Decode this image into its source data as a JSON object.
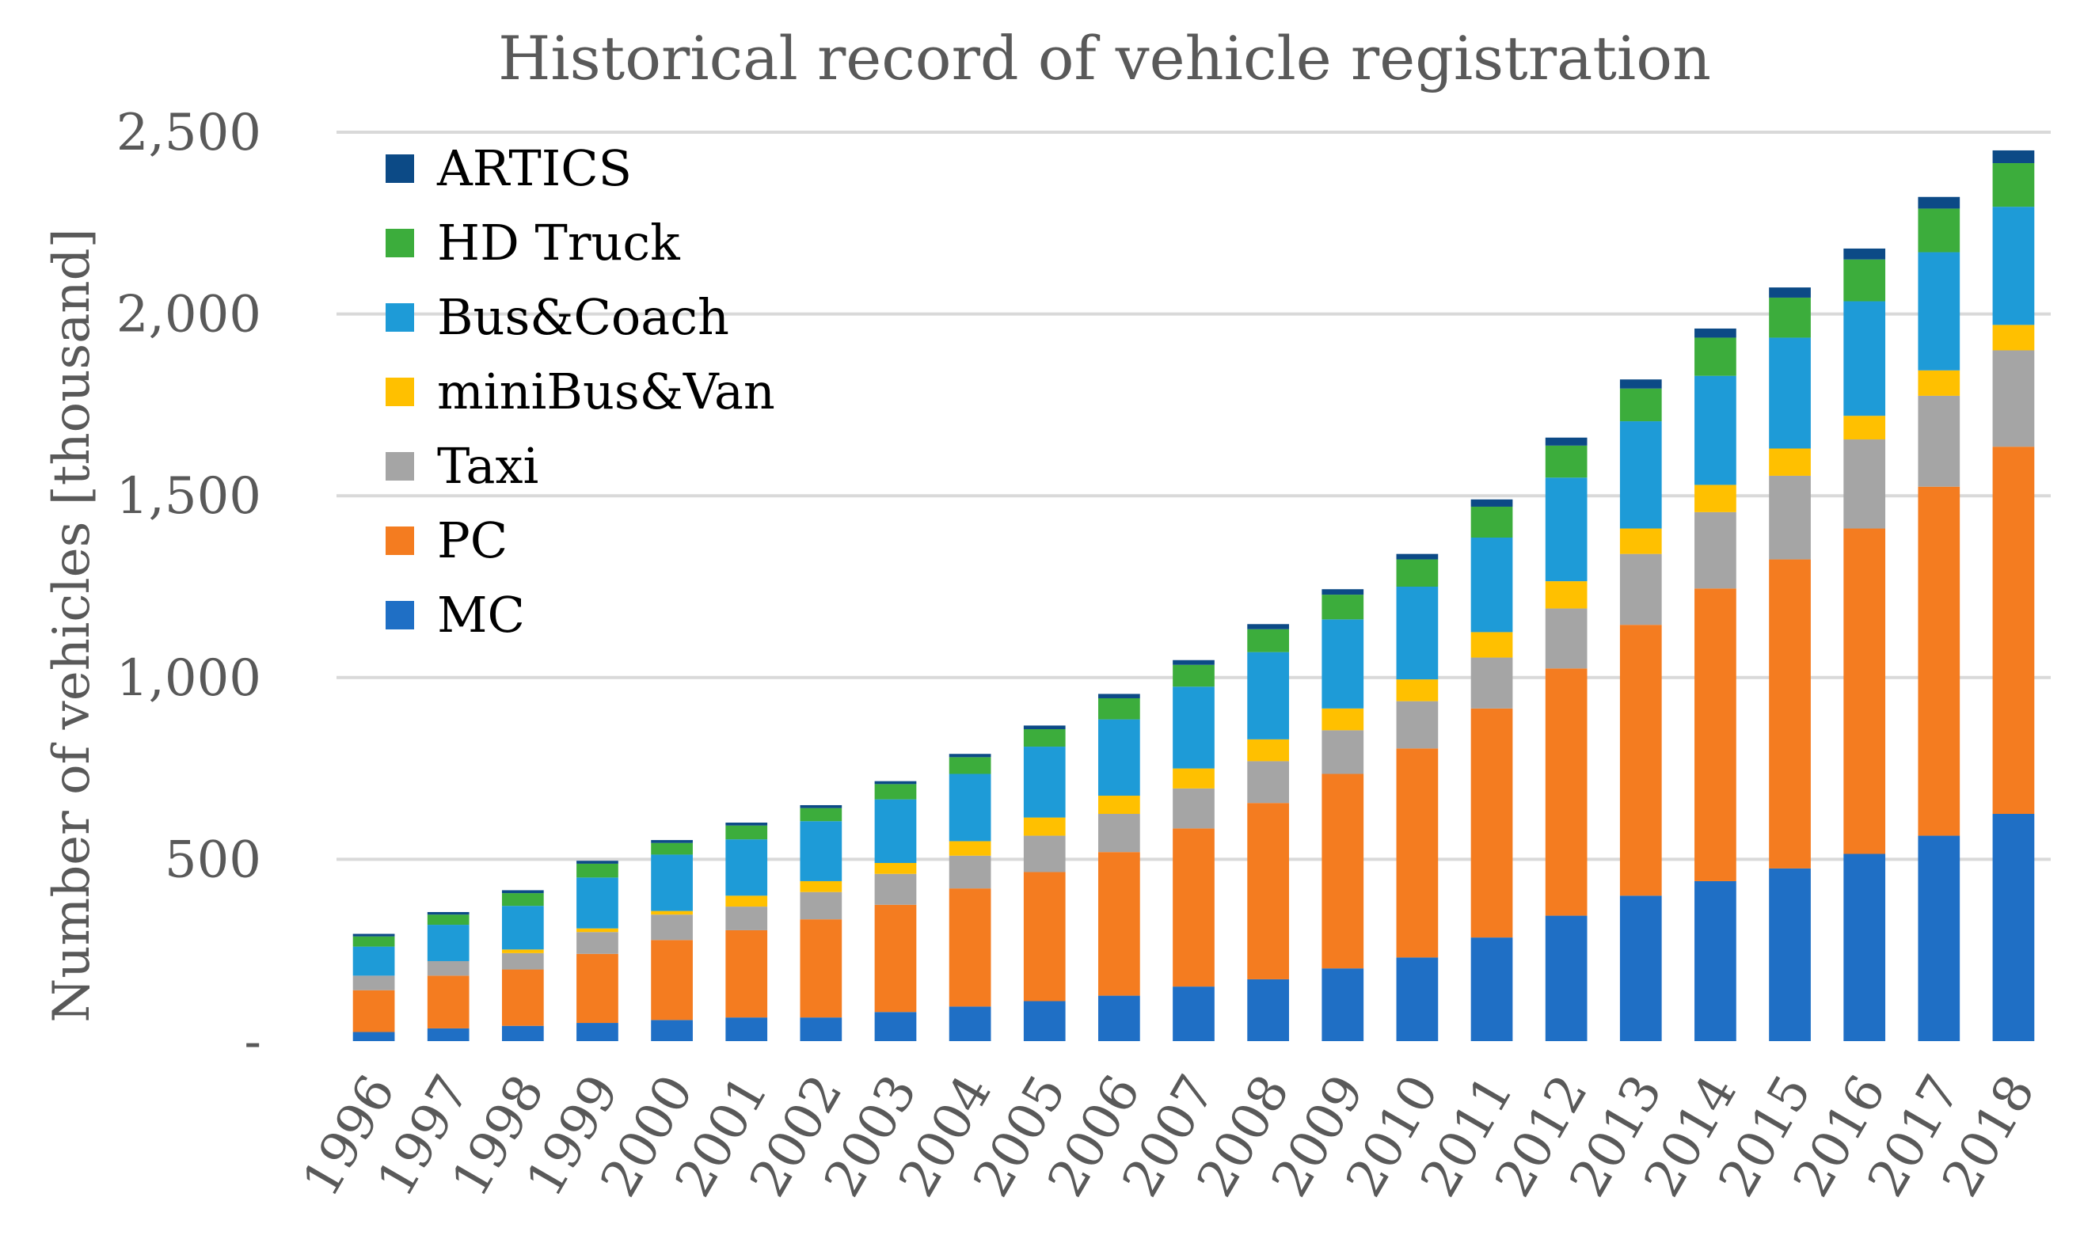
{
  "chart_data": {
    "type": "bar",
    "stacked": true,
    "title": "Historical record of vehicle registration",
    "xlabel": "",
    "ylabel": "Number of vehicles [thousand]",
    "ylim": [
      0,
      2500
    ],
    "yticks": [
      {
        "value": 0,
        "label": "-"
      },
      {
        "value": 500,
        "label": "500"
      },
      {
        "value": 1000,
        "label": "1,000"
      },
      {
        "value": 1500,
        "label": "1,500"
      },
      {
        "value": 2000,
        "label": "2,000"
      },
      {
        "value": 2500,
        "label": "2,500"
      }
    ],
    "grid": true,
    "legend_position": "top-left",
    "categories": [
      "1996",
      "1997",
      "1998",
      "1999",
      "2000",
      "2001",
      "2002",
      "2003",
      "2004",
      "2005",
      "2006",
      "2007",
      "2008",
      "2009",
      "2010",
      "2011",
      "2012",
      "2013",
      "2014",
      "2015",
      "2016",
      "2017",
      "2018"
    ],
    "series": [
      {
        "name": "MC",
        "color": "#1f6fc5",
        "values": [
          25,
          35,
          42,
          50,
          58,
          65,
          65,
          80,
          95,
          110,
          125,
          150,
          170,
          200,
          230,
          285,
          345,
          400,
          440,
          475,
          515,
          565,
          625
        ]
      },
      {
        "name": "PC",
        "color": "#f47c20",
        "values": [
          115,
          145,
          155,
          190,
          220,
          240,
          270,
          295,
          325,
          355,
          395,
          435,
          485,
          535,
          575,
          630,
          680,
          745,
          805,
          850,
          895,
          960,
          1010
        ]
      },
      {
        "name": "Taxi",
        "color": "#a5a5a5",
        "values": [
          40,
          40,
          45,
          60,
          70,
          65,
          75,
          85,
          90,
          100,
          105,
          110,
          115,
          120,
          130,
          140,
          165,
          195,
          210,
          230,
          245,
          250,
          265
        ]
      },
      {
        "name": "miniBus&Van",
        "color": "#ffc000",
        "values": [
          0,
          0,
          10,
          10,
          10,
          30,
          30,
          30,
          40,
          50,
          50,
          55,
          60,
          60,
          60,
          70,
          75,
          70,
          75,
          75,
          65,
          70,
          70
        ]
      },
      {
        "name": "Bus&Coach",
        "color": "#1e9bd7",
        "values": [
          80,
          100,
          120,
          140,
          155,
          155,
          165,
          175,
          185,
          195,
          210,
          225,
          240,
          245,
          255,
          260,
          285,
          295,
          300,
          305,
          315,
          325,
          325
        ]
      },
      {
        "name": "HD Truck",
        "color": "#3cad3c",
        "values": [
          28,
          28,
          35,
          38,
          32,
          38,
          36,
          42,
          46,
          48,
          58,
          60,
          63,
          68,
          75,
          85,
          88,
          90,
          105,
          110,
          115,
          120,
          120
        ]
      },
      {
        "name": "ARTICS",
        "color": "#0c4a86",
        "values": [
          7,
          7,
          8,
          8,
          8,
          8,
          8,
          8,
          9,
          10,
          12,
          13,
          14,
          15,
          15,
          20,
          22,
          25,
          25,
          28,
          30,
          32,
          35
        ]
      }
    ]
  }
}
